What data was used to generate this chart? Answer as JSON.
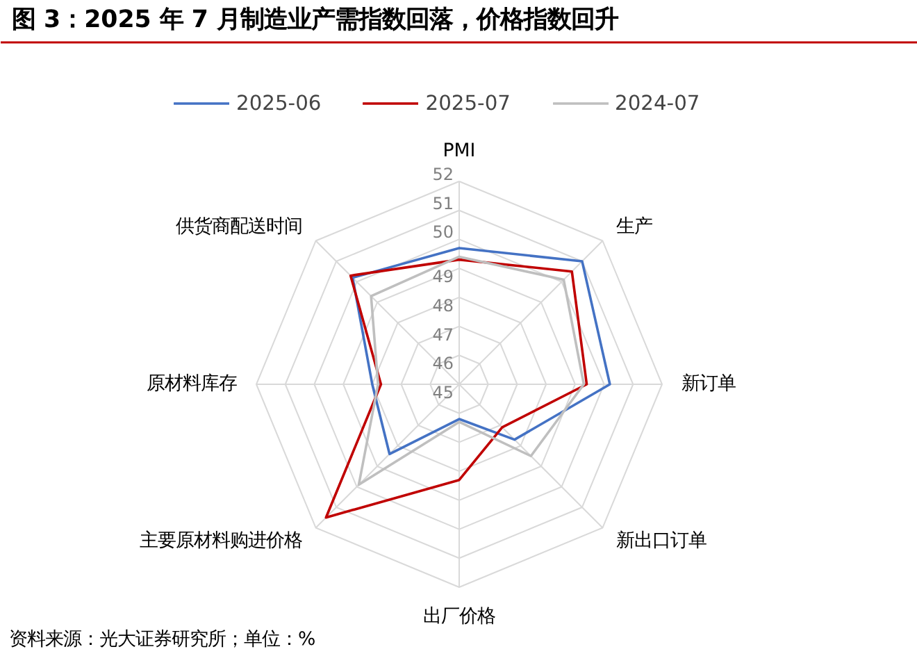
{
  "chart_data": {
    "type": "radar",
    "title": "图 3：2025 年 7 月制造业产需指数回落，价格指数回升",
    "categories": [
      "PMI",
      "生产",
      "新订单",
      "新出口订单",
      "出厂价格",
      "主要原材料购进价格",
      "原材料库存",
      "供货商配送时间"
    ],
    "series": [
      {
        "name": "2025-06",
        "color": "#4472c4",
        "values": [
          49.7,
          51.0,
          50.2,
          47.7,
          46.2,
          48.4,
          48.0,
          50.2
        ]
      },
      {
        "name": "2025-07",
        "color": "#c00000",
        "values": [
          49.3,
          50.5,
          49.4,
          47.1,
          48.3,
          51.5,
          47.7,
          50.3
        ]
      },
      {
        "name": "2024-07",
        "color": "#bfbfbf",
        "values": [
          49.4,
          50.1,
          49.3,
          48.5,
          46.3,
          49.9,
          47.8,
          49.3
        ]
      }
    ],
    "ylim": [
      45,
      52
    ],
    "yticks": [
      45,
      46,
      47,
      48,
      49,
      50,
      51,
      52
    ],
    "grid": true,
    "legend": "top",
    "marker": "none",
    "line_style": "solid",
    "annotations": [
      "资料来源：光大证券研究所；单位：%"
    ]
  }
}
